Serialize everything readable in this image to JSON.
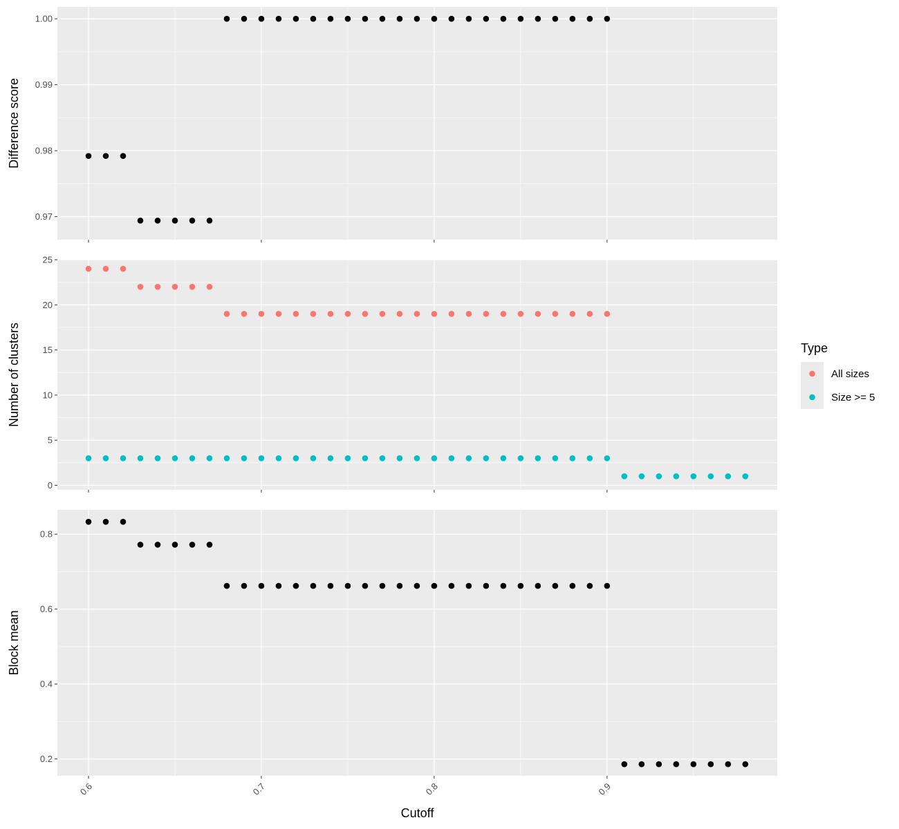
{
  "chart_data": [
    {
      "type": "scatter",
      "panel": "top",
      "ylabel": "Difference score",
      "ylim": [
        0.9665,
        1.0018
      ],
      "yticks": [
        0.97,
        0.98,
        0.99,
        1.0
      ],
      "ytick_labels": [
        "0.97",
        "0.98",
        "0.99",
        "1.00"
      ],
      "x": [
        0.6,
        0.61,
        0.62,
        0.63,
        0.64,
        0.65,
        0.66,
        0.67,
        0.68,
        0.69,
        0.7,
        0.71,
        0.72,
        0.73,
        0.74,
        0.75,
        0.76,
        0.77,
        0.78,
        0.79,
        0.8,
        0.81,
        0.82,
        0.83,
        0.84,
        0.85,
        0.86,
        0.87,
        0.88,
        0.89,
        0.9
      ],
      "y": [
        0.9792,
        0.9792,
        0.9792,
        0.9694,
        0.9694,
        0.9694,
        0.9694,
        0.9694,
        1.0,
        1.0,
        1.0,
        1.0,
        1.0,
        1.0,
        1.0,
        1.0,
        1.0,
        1.0,
        1.0,
        1.0,
        1.0,
        1.0,
        1.0,
        1.0,
        1.0,
        1.0,
        1.0,
        1.0,
        1.0,
        1.0,
        1.0
      ],
      "color": "#000000",
      "grid": true
    },
    {
      "type": "scatter",
      "panel": "middle",
      "ylabel": "Number of clusters",
      "ylim": [
        -0.5,
        25.0
      ],
      "yticks": [
        0,
        5,
        10,
        15,
        20,
        25
      ],
      "ytick_labels": [
        "0",
        "5",
        "10",
        "15",
        "20",
        "25"
      ],
      "series": [
        {
          "name": "All sizes",
          "color": "#F8766D",
          "x": [
            0.6,
            0.61,
            0.62,
            0.63,
            0.64,
            0.65,
            0.66,
            0.67,
            0.68,
            0.69,
            0.7,
            0.71,
            0.72,
            0.73,
            0.74,
            0.75,
            0.76,
            0.77,
            0.78,
            0.79,
            0.8,
            0.81,
            0.82,
            0.83,
            0.84,
            0.85,
            0.86,
            0.87,
            0.88,
            0.89,
            0.9
          ],
          "y": [
            24,
            24,
            24,
            22,
            22,
            22,
            22,
            22,
            19,
            19,
            19,
            19,
            19,
            19,
            19,
            19,
            19,
            19,
            19,
            19,
            19,
            19,
            19,
            19,
            19,
            19,
            19,
            19,
            19,
            19,
            19
          ]
        },
        {
          "name": "Size >= 5",
          "color": "#00BFC4",
          "x": [
            0.6,
            0.61,
            0.62,
            0.63,
            0.64,
            0.65,
            0.66,
            0.67,
            0.68,
            0.69,
            0.7,
            0.71,
            0.72,
            0.73,
            0.74,
            0.75,
            0.76,
            0.77,
            0.78,
            0.79,
            0.8,
            0.81,
            0.82,
            0.83,
            0.84,
            0.85,
            0.86,
            0.87,
            0.88,
            0.89,
            0.9,
            0.91,
            0.92,
            0.93,
            0.94,
            0.95,
            0.96,
            0.97,
            0.98
          ],
          "y": [
            3,
            3,
            3,
            3,
            3,
            3,
            3,
            3,
            3,
            3,
            3,
            3,
            3,
            3,
            3,
            3,
            3,
            3,
            3,
            3,
            3,
            3,
            3,
            3,
            3,
            3,
            3,
            3,
            3,
            3,
            3,
            1,
            1,
            1,
            1,
            1,
            1,
            1,
            1
          ]
        }
      ],
      "legend": {
        "title": "Type",
        "placement": "right"
      },
      "grid": true
    },
    {
      "type": "scatter",
      "panel": "bottom",
      "ylabel": "Block mean",
      "xlabel": "Cutoff",
      "ylim": [
        0.155,
        0.865
      ],
      "yticks": [
        0.2,
        0.4,
        0.6,
        0.8
      ],
      "ytick_labels": [
        "0.2",
        "0.4",
        "0.6",
        "0.8"
      ],
      "x": [
        0.6,
        0.61,
        0.62,
        0.63,
        0.64,
        0.65,
        0.66,
        0.67,
        0.68,
        0.69,
        0.7,
        0.71,
        0.72,
        0.73,
        0.74,
        0.75,
        0.76,
        0.77,
        0.78,
        0.79,
        0.8,
        0.81,
        0.82,
        0.83,
        0.84,
        0.85,
        0.86,
        0.87,
        0.88,
        0.89,
        0.9,
        0.91,
        0.92,
        0.93,
        0.94,
        0.95,
        0.96,
        0.97,
        0.98
      ],
      "y": [
        0.833,
        0.833,
        0.833,
        0.772,
        0.772,
        0.772,
        0.772,
        0.772,
        0.662,
        0.662,
        0.662,
        0.662,
        0.662,
        0.662,
        0.662,
        0.662,
        0.662,
        0.662,
        0.662,
        0.662,
        0.662,
        0.662,
        0.662,
        0.662,
        0.662,
        0.662,
        0.662,
        0.662,
        0.662,
        0.662,
        0.662,
        0.186,
        0.186,
        0.186,
        0.186,
        0.186,
        0.186,
        0.186,
        0.186
      ],
      "color": "#000000",
      "grid": true
    }
  ],
  "x_axis": {
    "label": "Cutoff",
    "xlim": [
      0.582,
      0.9985
    ],
    "ticks": [
      0.6,
      0.7,
      0.8,
      0.9
    ],
    "tick_labels": [
      "0.6",
      "0.7",
      "0.8",
      "0.9"
    ],
    "tick_label_rotation": -45
  },
  "colors": {
    "panel_background": "#EBEBEB",
    "grid_major": "#FFFFFF",
    "tick_label": "#4D4D4D"
  }
}
